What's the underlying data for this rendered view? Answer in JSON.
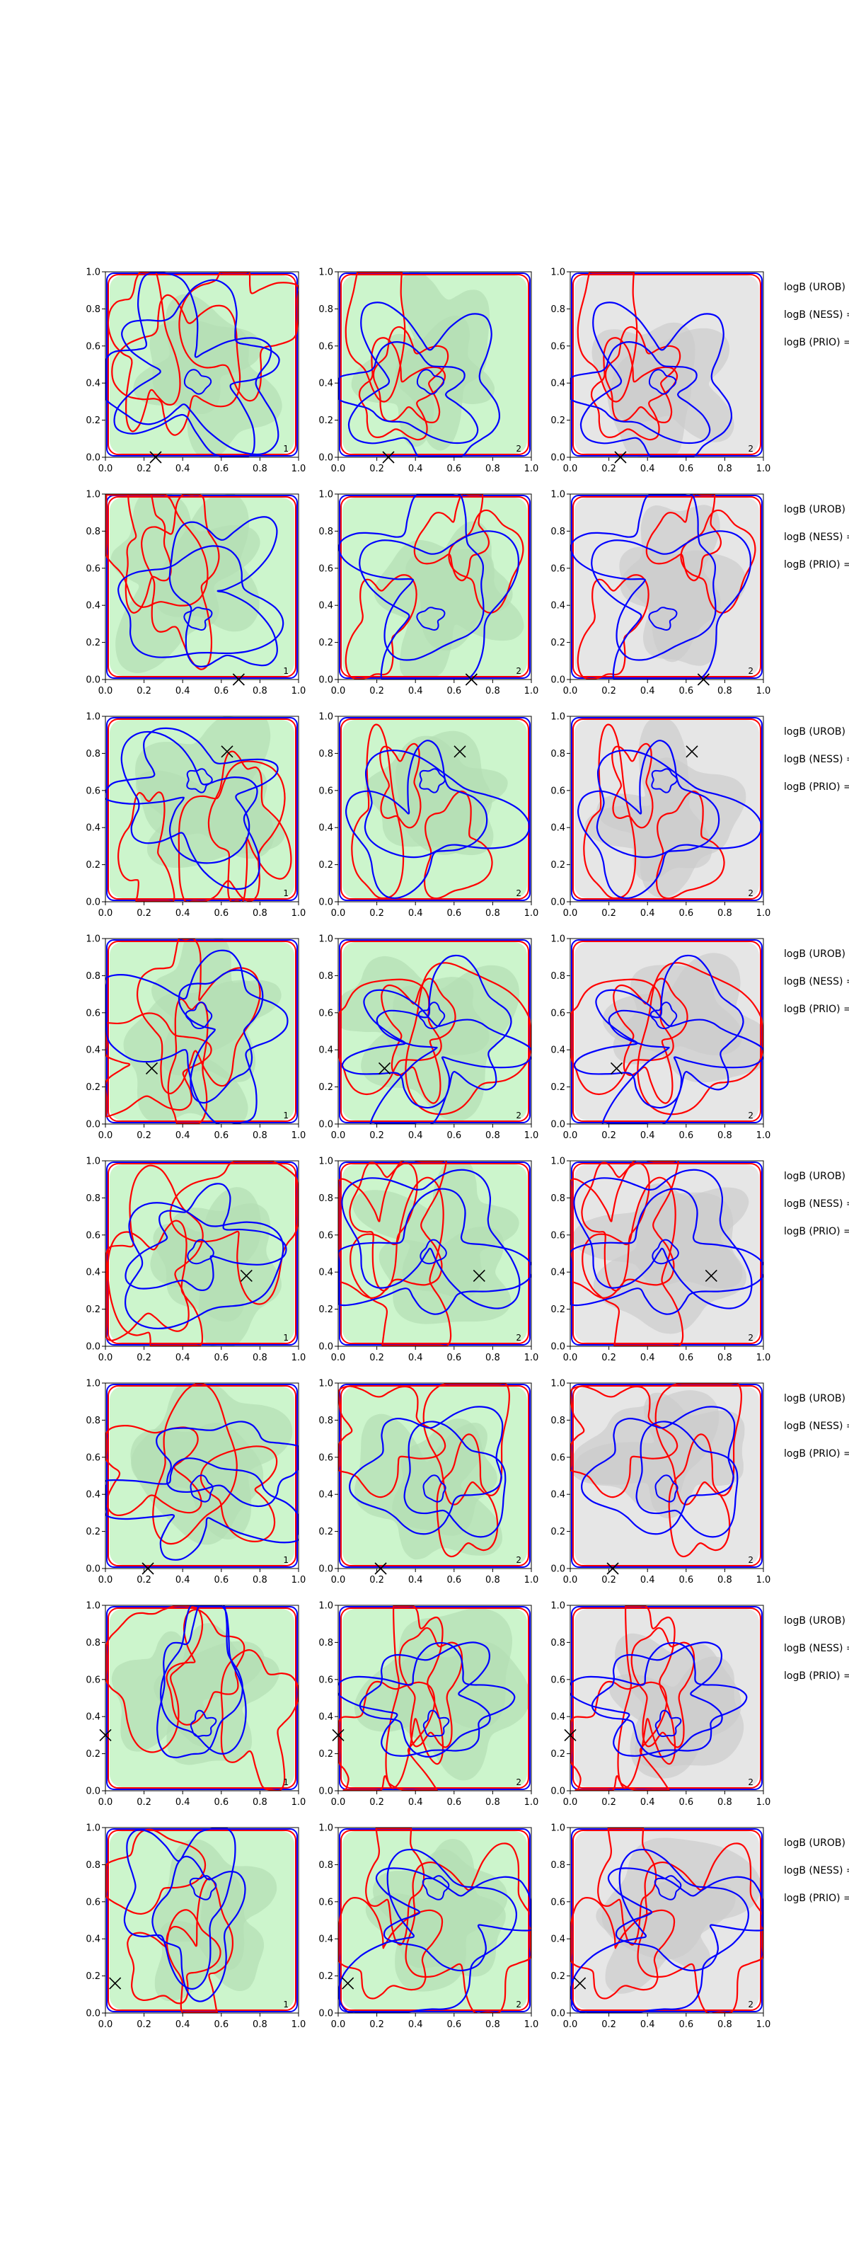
{
  "figure": {
    "rows": 8,
    "cols": 3,
    "colors": {
      "contour_a": "#0000ff",
      "contour_b": "#ff0000",
      "fill_green": "#ccf5cc",
      "fill_green_dark": "#b3deb3",
      "fill_grey": "#e6e6e6",
      "fill_grey_dark": "#cccccc",
      "marker": "#000000"
    },
    "axes": {
      "xlim": [
        0,
        1
      ],
      "ylim": [
        0,
        1
      ],
      "xticks": [
        "0.0",
        "0.2",
        "0.4",
        "0.6",
        "0.8",
        "1.0"
      ],
      "yticks": [
        "0.0",
        "0.2",
        "0.4",
        "0.6",
        "0.8",
        "1.0"
      ]
    },
    "stat_labels": [
      "logB (UROB) =",
      "logB (NESS) =",
      "logB (PRIO) ="
    ],
    "panel_background": [
      "green",
      "green",
      "grey"
    ],
    "panel_tags": [
      "1",
      "2",
      "2"
    ]
  },
  "chart_data": {
    "type": "contour",
    "panels": [
      {
        "row": 1,
        "marker": [
          0.26,
          0.0
        ]
      },
      {
        "row": 2,
        "marker": [
          0.69,
          0.0
        ]
      },
      {
        "row": 3,
        "marker": [
          0.63,
          0.81
        ]
      },
      {
        "row": 4,
        "marker": [
          0.24,
          0.3
        ]
      },
      {
        "row": 5,
        "marker": [
          0.73,
          0.38
        ]
      },
      {
        "row": 6,
        "marker": [
          0.22,
          0.0
        ]
      },
      {
        "row": 7,
        "marker": [
          0.0,
          0.3
        ]
      },
      {
        "row": 8,
        "marker": [
          0.05,
          0.16
        ]
      }
    ]
  }
}
